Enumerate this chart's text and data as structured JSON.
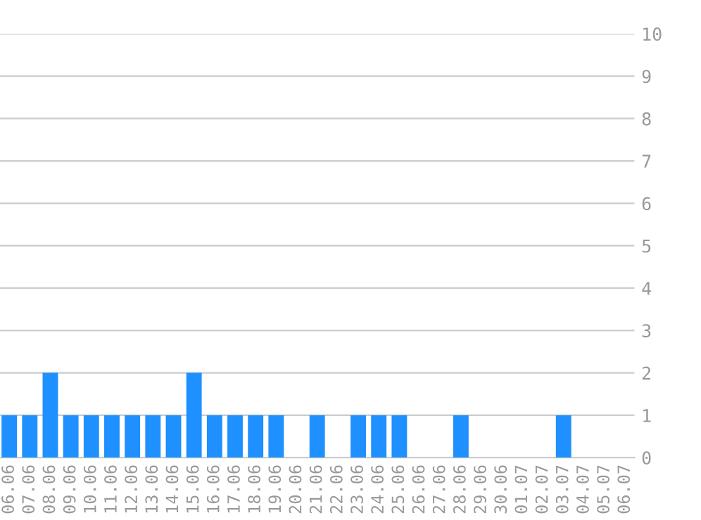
{
  "chart_data": {
    "type": "bar",
    "categories": [
      "06.06",
      "07.06",
      "08.06",
      "09.06",
      "10.06",
      "11.06",
      "12.06",
      "13.06",
      "14.06",
      "15.06",
      "16.06",
      "17.06",
      "18.06",
      "19.06",
      "20.06",
      "21.06",
      "22.06",
      "23.06",
      "24.06",
      "25.06",
      "26.06",
      "27.06",
      "28.06",
      "29.06",
      "30.06",
      "01.07",
      "02.07",
      "03.07",
      "04.07",
      "05.07",
      "06.07"
    ],
    "values": [
      1,
      1,
      2,
      1,
      1,
      1,
      1,
      1,
      1,
      2,
      1,
      1,
      1,
      1,
      0,
      1,
      0,
      1,
      1,
      1,
      0,
      0,
      1,
      0,
      0,
      0,
      0,
      1,
      0,
      0,
      0
    ],
    "color": "#1e90ff",
    "ylim": [
      0,
      10
    ],
    "yticks": [
      0,
      1,
      2,
      3,
      4,
      5,
      6,
      7,
      8,
      9,
      10
    ],
    "grid": "y",
    "legend": false
  }
}
